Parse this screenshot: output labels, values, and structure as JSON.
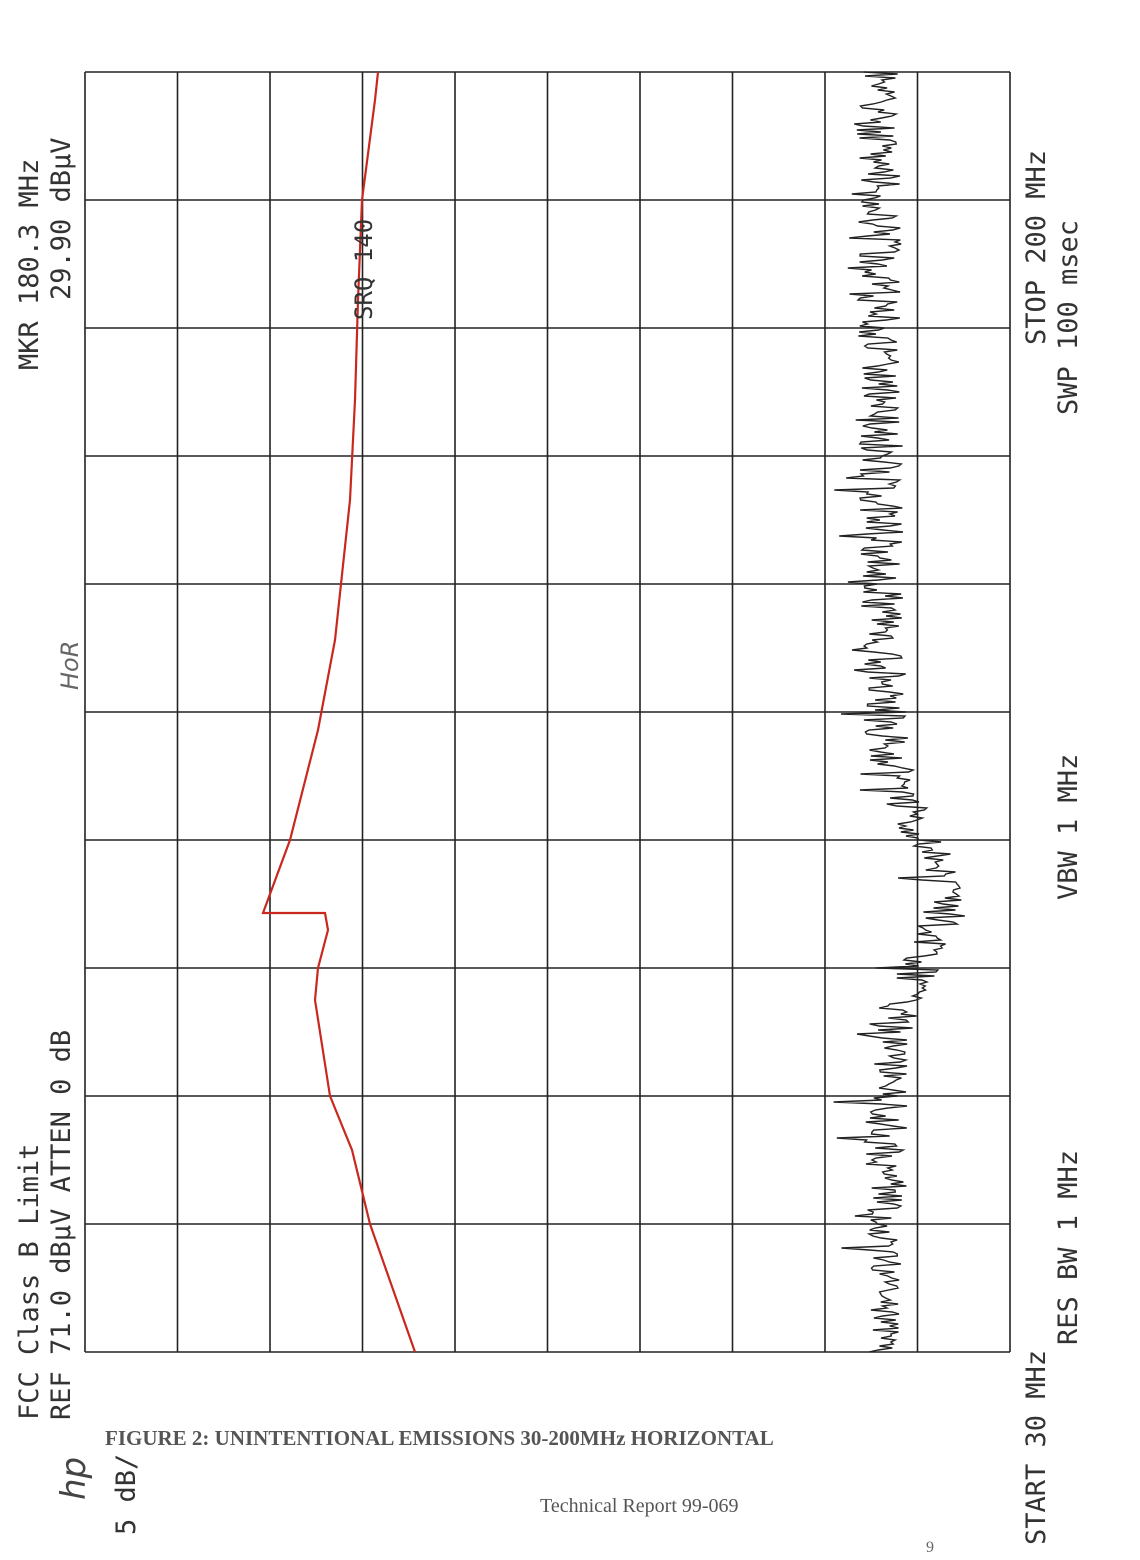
{
  "plot": {
    "header_left_1": "FCC Class B Limit",
    "header_left_2": "REF 71.0 dBµV  ATTEN 0 dB",
    "marker_1": "MKR 180.3 MHz",
    "marker_2": "29.90 dBµV",
    "scale": "5 dB/",
    "start": "START 30 MHz",
    "stop": "STOP 200 MHz",
    "res_bw": "RES BW 1 MHz",
    "vbw": "VBW 1 MHz",
    "sweep": "SWP 100 msec",
    "srq": "SRQ 140",
    "handwritten_pol": "HoR",
    "handwritten_logo": "hp"
  },
  "caption": "FIGURE 2: UNINTENTIONAL EMISSIONS 30-200MHz   HORIZONTAL",
  "footer": {
    "report": "Technical Report 99-069",
    "page": "9"
  }
}
